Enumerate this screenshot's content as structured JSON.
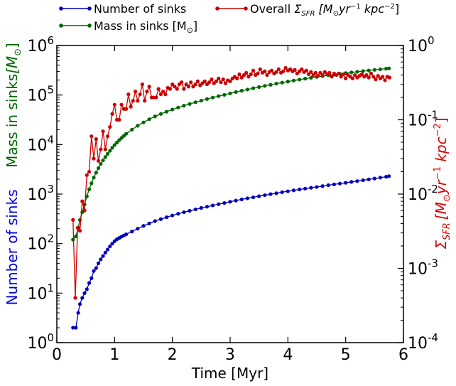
{
  "chart_data": {
    "type": "line",
    "title": "",
    "xlabel": "Time [Myr]",
    "xlim": [
      0,
      6
    ],
    "xticks": [
      0,
      1,
      2,
      3,
      4,
      5,
      6
    ],
    "xtick_labels": [
      "0",
      "1",
      "2",
      "3",
      "4",
      "5",
      "6"
    ],
    "left_axis": {
      "scale": "log",
      "ylim": [
        1,
        1000000
      ],
      "tick_values": [
        1,
        10,
        100,
        1000,
        10000,
        100000,
        1000000
      ],
      "tick_bases": [
        "10",
        "10",
        "10",
        "10",
        "10",
        "10",
        "10"
      ],
      "tick_exps": [
        "0",
        "1",
        "2",
        "3",
        "4",
        "5",
        "6"
      ],
      "label_number": "Number of sinks",
      "label_mass": "Mass in sinks",
      "label_mass_unit": "[M",
      "label_mass_unit_sub": "⊙",
      "label_mass_unit_close": "]"
    },
    "right_axis": {
      "scale": "log",
      "ylim": [
        0.0001,
        1
      ],
      "tick_values": [
        0.0001,
        0.001,
        0.01,
        0.1,
        1
      ],
      "tick_bases": [
        "10",
        "10",
        "10",
        "10",
        "10"
      ],
      "tick_exps": [
        "-4",
        "-3",
        "-2",
        "-1",
        "0"
      ],
      "label": "Σ_SFR [M⊙ yr⁻¹ kpc⁻²]",
      "label_sigma": "Σ",
      "label_sigma_sub": "SFR",
      "label_unit_open": "[M",
      "label_unit_sun": "⊙",
      "label_unit_yr": "yr",
      "label_unit_yr_exp": "−1",
      "label_unit_kpc": " kpc",
      "label_unit_kpc_exp": "−2",
      "label_unit_close": "]"
    },
    "grid": false,
    "legend_position": "top",
    "legend": [
      {
        "name": "Number of sinks",
        "color": "#0000bb"
      },
      {
        "name": "Mass in sinks [M⊙]",
        "color": "#006600"
      },
      {
        "name": "Overall Σ_SFR [M⊙ yr⁻¹ kpc⁻²]",
        "color": "#cc0000"
      }
    ],
    "legend_text": {
      "number": "Number of sinks",
      "mass": "Mass in sinks [M",
      "mass_sun": "⊙",
      "mass_close": "]",
      "sfr_prefix": "Overall ",
      "sfr_sigma": "Σ",
      "sfr_sub": "SFR",
      "sfr_unit": " [M",
      "sfr_sun": "⊙",
      "sfr_yr": "yr",
      "sfr_yr_exp": "−1",
      "sfr_kpc": " kpc",
      "sfr_kpc_exp": "−2",
      "sfr_close": "]"
    },
    "series": [
      {
        "name": "Number of sinks",
        "axis": "left",
        "color": "#0000bb",
        "points": [
          [
            0.28,
            2
          ],
          [
            0.33,
            2
          ],
          [
            0.37,
            4
          ],
          [
            0.4,
            6
          ],
          [
            0.44,
            8
          ],
          [
            0.48,
            10
          ],
          [
            0.52,
            12
          ],
          [
            0.56,
            16
          ],
          [
            0.6,
            20
          ],
          [
            0.64,
            28
          ],
          [
            0.68,
            32
          ],
          [
            0.72,
            40
          ],
          [
            0.76,
            48
          ],
          [
            0.8,
            56
          ],
          [
            0.84,
            66
          ],
          [
            0.88,
            76
          ],
          [
            0.92,
            88
          ],
          [
            0.96,
            100
          ],
          [
            1.0,
            112
          ],
          [
            1.04,
            122
          ],
          [
            1.08,
            130
          ],
          [
            1.12,
            138
          ],
          [
            1.16,
            146
          ],
          [
            1.2,
            154
          ],
          [
            1.3,
            175
          ],
          [
            1.4,
            200
          ],
          [
            1.5,
            228
          ],
          [
            1.6,
            255
          ],
          [
            1.7,
            285
          ],
          [
            1.8,
            312
          ],
          [
            1.9,
            340
          ],
          [
            2.0,
            370
          ],
          [
            2.1,
            400
          ],
          [
            2.2,
            430
          ],
          [
            2.3,
            460
          ],
          [
            2.4,
            490
          ],
          [
            2.5,
            525
          ],
          [
            2.6,
            555
          ],
          [
            2.7,
            590
          ],
          [
            2.8,
            625
          ],
          [
            2.9,
            660
          ],
          [
            3.0,
            700
          ],
          [
            3.1,
            740
          ],
          [
            3.2,
            780
          ],
          [
            3.3,
            820
          ],
          [
            3.4,
            860
          ],
          [
            3.5,
            905
          ],
          [
            3.6,
            950
          ],
          [
            3.7,
            995
          ],
          [
            3.8,
            1040
          ],
          [
            3.9,
            1090
          ],
          [
            4.0,
            1140
          ],
          [
            4.1,
            1190
          ],
          [
            4.2,
            1240
          ],
          [
            4.3,
            1290
          ],
          [
            4.4,
            1340
          ],
          [
            4.5,
            1390
          ],
          [
            4.6,
            1450
          ],
          [
            4.7,
            1510
          ],
          [
            4.8,
            1570
          ],
          [
            4.9,
            1630
          ],
          [
            5.0,
            1690
          ],
          [
            5.1,
            1760
          ],
          [
            5.2,
            1830
          ],
          [
            5.3,
            1900
          ],
          [
            5.4,
            1980
          ],
          [
            5.5,
            2060
          ],
          [
            5.6,
            2150
          ],
          [
            5.7,
            2240
          ],
          [
            5.75,
            2300
          ]
        ]
      },
      {
        "name": "Mass in sinks [M⊙]",
        "axis": "left",
        "color": "#006600",
        "points": [
          [
            0.28,
            120
          ],
          [
            0.33,
            140
          ],
          [
            0.37,
            210
          ],
          [
            0.4,
            300
          ],
          [
            0.44,
            430
          ],
          [
            0.48,
            620
          ],
          [
            0.52,
            900
          ],
          [
            0.56,
            1250
          ],
          [
            0.6,
            1650
          ],
          [
            0.64,
            2150
          ],
          [
            0.68,
            2700
          ],
          [
            0.72,
            3350
          ],
          [
            0.76,
            4050
          ],
          [
            0.8,
            4800
          ],
          [
            0.84,
            5600
          ],
          [
            0.88,
            6500
          ],
          [
            0.92,
            7500
          ],
          [
            0.96,
            8600
          ],
          [
            1.0,
            9800
          ],
          [
            1.04,
            11000
          ],
          [
            1.08,
            12300
          ],
          [
            1.12,
            13600
          ],
          [
            1.16,
            15000
          ],
          [
            1.2,
            16500
          ],
          [
            1.3,
            20000
          ],
          [
            1.4,
            24000
          ],
          [
            1.5,
            28000
          ],
          [
            1.6,
            32500
          ],
          [
            1.7,
            37000
          ],
          [
            1.8,
            41500
          ],
          [
            1.9,
            46000
          ],
          [
            2.0,
            51000
          ],
          [
            2.1,
            56000
          ],
          [
            2.2,
            61000
          ],
          [
            2.3,
            66000
          ],
          [
            2.4,
            71500
          ],
          [
            2.5,
            77000
          ],
          [
            2.6,
            83000
          ],
          [
            2.7,
            89000
          ],
          [
            2.8,
            95000
          ],
          [
            2.9,
            101000
          ],
          [
            3.0,
            108000
          ],
          [
            3.1,
            115000
          ],
          [
            3.2,
            122000
          ],
          [
            3.3,
            129000
          ],
          [
            3.4,
            137000
          ],
          [
            3.5,
            145000
          ],
          [
            3.6,
            153000
          ],
          [
            3.7,
            161000
          ],
          [
            3.8,
            170000
          ],
          [
            3.9,
            178000
          ],
          [
            4.0,
            187000
          ],
          [
            4.1,
            196000
          ],
          [
            4.2,
            205000
          ],
          [
            4.3,
            214000
          ],
          [
            4.4,
            223000
          ],
          [
            4.5,
            232000
          ],
          [
            4.6,
            241000
          ],
          [
            4.7,
            250000
          ],
          [
            4.8,
            259000
          ],
          [
            4.9,
            268000
          ],
          [
            5.0,
            277000
          ],
          [
            5.1,
            286000
          ],
          [
            5.2,
            295000
          ],
          [
            5.3,
            304000
          ],
          [
            5.4,
            313000
          ],
          [
            5.5,
            322000
          ],
          [
            5.6,
            331000
          ],
          [
            5.7,
            340000
          ],
          [
            5.75,
            345000
          ]
        ]
      },
      {
        "name": "Overall Σ_SFR [M⊙ yr⁻¹ kpc⁻²]",
        "axis": "right",
        "color": "#cc0000",
        "points": [
          [
            0.28,
            0.0045
          ],
          [
            0.32,
            0.0004
          ],
          [
            0.36,
            0.0035
          ],
          [
            0.4,
            0.0032
          ],
          [
            0.44,
            0.008
          ],
          [
            0.48,
            0.006
          ],
          [
            0.52,
            0.018
          ],
          [
            0.56,
            0.02
          ],
          [
            0.6,
            0.06
          ],
          [
            0.64,
            0.03
          ],
          [
            0.68,
            0.055
          ],
          [
            0.72,
            0.028
          ],
          [
            0.76,
            0.04
          ],
          [
            0.8,
            0.07
          ],
          [
            0.84,
            0.04
          ],
          [
            0.88,
            0.06
          ],
          [
            0.92,
            0.08
          ],
          [
            0.96,
            0.12
          ],
          [
            1.0,
            0.16
          ],
          [
            1.04,
            0.1
          ],
          [
            1.08,
            0.1
          ],
          [
            1.12,
            0.16
          ],
          [
            1.16,
            0.14
          ],
          [
            1.2,
            0.14
          ],
          [
            1.24,
            0.22
          ],
          [
            1.28,
            0.15
          ],
          [
            1.32,
            0.18
          ],
          [
            1.36,
            0.24
          ],
          [
            1.4,
            0.18
          ],
          [
            1.44,
            0.22
          ],
          [
            1.48,
            0.3
          ],
          [
            1.52,
            0.18
          ],
          [
            1.56,
            0.24
          ],
          [
            1.6,
            0.28
          ],
          [
            1.64,
            0.2
          ],
          [
            1.68,
            0.2
          ],
          [
            1.72,
            0.2
          ],
          [
            1.76,
            0.26
          ],
          [
            1.8,
            0.22
          ],
          [
            1.84,
            0.24
          ],
          [
            1.88,
            0.22
          ],
          [
            1.92,
            0.27
          ],
          [
            1.96,
            0.26
          ],
          [
            2.0,
            0.3
          ],
          [
            2.04,
            0.28
          ],
          [
            2.08,
            0.26
          ],
          [
            2.12,
            0.3
          ],
          [
            2.16,
            0.32
          ],
          [
            2.2,
            0.26
          ],
          [
            2.24,
            0.3
          ],
          [
            2.28,
            0.28
          ],
          [
            2.32,
            0.32
          ],
          [
            2.36,
            0.28
          ],
          [
            2.4,
            0.3
          ],
          [
            2.44,
            0.33
          ],
          [
            2.48,
            0.29
          ],
          [
            2.52,
            0.31
          ],
          [
            2.56,
            0.33
          ],
          [
            2.6,
            0.3
          ],
          [
            2.64,
            0.32
          ],
          [
            2.68,
            0.35
          ],
          [
            2.72,
            0.31
          ],
          [
            2.76,
            0.33
          ],
          [
            2.8,
            0.36
          ],
          [
            2.84,
            0.32
          ],
          [
            2.88,
            0.35
          ],
          [
            2.92,
            0.31
          ],
          [
            2.96,
            0.34
          ],
          [
            3.0,
            0.33
          ],
          [
            3.04,
            0.36
          ],
          [
            3.08,
            0.38
          ],
          [
            3.12,
            0.36
          ],
          [
            3.16,
            0.41
          ],
          [
            3.2,
            0.37
          ],
          [
            3.24,
            0.4
          ],
          [
            3.28,
            0.43
          ],
          [
            3.32,
            0.38
          ],
          [
            3.36,
            0.41
          ],
          [
            3.4,
            0.46
          ],
          [
            3.44,
            0.4
          ],
          [
            3.48,
            0.42
          ],
          [
            3.52,
            0.48
          ],
          [
            3.56,
            0.43
          ],
          [
            3.6,
            0.45
          ],
          [
            3.64,
            0.4
          ],
          [
            3.68,
            0.44
          ],
          [
            3.72,
            0.46
          ],
          [
            3.76,
            0.42
          ],
          [
            3.8,
            0.44
          ],
          [
            3.84,
            0.48
          ],
          [
            3.88,
            0.43
          ],
          [
            3.92,
            0.45
          ],
          [
            3.96,
            0.5
          ],
          [
            4.0,
            0.46
          ],
          [
            4.04,
            0.48
          ],
          [
            4.08,
            0.45
          ],
          [
            4.12,
            0.47
          ],
          [
            4.16,
            0.42
          ],
          [
            4.2,
            0.45
          ],
          [
            4.24,
            0.48
          ],
          [
            4.28,
            0.44
          ],
          [
            4.32,
            0.46
          ],
          [
            4.36,
            0.41
          ],
          [
            4.4,
            0.44
          ],
          [
            4.44,
            0.4
          ],
          [
            4.48,
            0.43
          ],
          [
            4.52,
            0.39
          ],
          [
            4.56,
            0.43
          ],
          [
            4.6,
            0.4
          ],
          [
            4.64,
            0.44
          ],
          [
            4.68,
            0.41
          ],
          [
            4.72,
            0.43
          ],
          [
            4.76,
            0.38
          ],
          [
            4.8,
            0.42
          ],
          [
            4.84,
            0.4
          ],
          [
            4.88,
            0.42
          ],
          [
            4.92,
            0.38
          ],
          [
            4.96,
            0.41
          ],
          [
            5.0,
            0.36
          ],
          [
            5.04,
            0.4
          ],
          [
            5.08,
            0.38
          ],
          [
            5.12,
            0.36
          ],
          [
            5.16,
            0.4
          ],
          [
            5.2,
            0.37
          ],
          [
            5.24,
            0.39
          ],
          [
            5.28,
            0.41
          ],
          [
            5.32,
            0.38
          ],
          [
            5.36,
            0.4
          ],
          [
            5.4,
            0.37
          ],
          [
            5.44,
            0.42
          ],
          [
            5.48,
            0.38
          ],
          [
            5.52,
            0.35
          ],
          [
            5.56,
            0.39
          ],
          [
            5.6,
            0.36
          ],
          [
            5.64,
            0.38
          ],
          [
            5.68,
            0.34
          ],
          [
            5.72,
            0.38
          ],
          [
            5.76,
            0.37
          ]
        ]
      }
    ]
  }
}
